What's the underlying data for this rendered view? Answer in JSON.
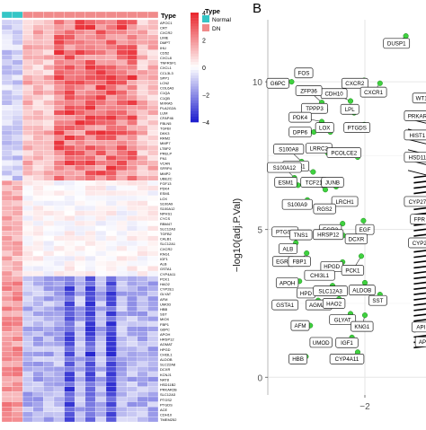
{
  "panel_b_letter": "B",
  "colors": {
    "heat_high": "#e8232b",
    "heat_mid": "#ffffff",
    "heat_low": "#1a1acd",
    "type_normal": "#35c6c6",
    "type_dn": "#f08a8a",
    "point": "#3fd13f",
    "point_edge": "#1f8c1f"
  },
  "chart_data": [
    {
      "type": "heatmap",
      "annotation_label": "Type",
      "colorbar": {
        "ticks": [
          4,
          2,
          0,
          -2,
          -4
        ],
        "range": [
          -4,
          4
        ]
      },
      "legend": {
        "title": "Type",
        "entries": [
          "Normal",
          "DN"
        ]
      },
      "columns_normal": 2,
      "columns_dn": 13,
      "row_label_groups": [
        {
          "name": "up_block_1",
          "labels": [
            "APOC1",
            "CRT",
            "CXCR2",
            "LIME",
            "DMPT",
            "IHU",
            "CD52",
            "CXCL8",
            "TNFRSF1",
            "CXCL1",
            "CCL3L3",
            "SPP1"
          ]
        },
        {
          "name": "up_block_2",
          "labels": [
            "LCN2",
            "COL6A3",
            "C1QA",
            "C1QB",
            "MXRA5",
            "PLA2G2A",
            "LUM",
            "CFAP46",
            "FBLN5",
            "TGFBI",
            "DKK3",
            "RRM2",
            "MMP7",
            "LTBP2",
            "PRELP",
            "FN1",
            "VCAN",
            "SFRP4",
            "MMP2",
            "UBEZC"
          ]
        },
        {
          "name": "mid_block",
          "labels": [
            "FGF13",
            "PDK4",
            "ESM1",
            "LOX",
            "S100A9",
            "S100A12",
            "NPHS1",
            "CYCS",
            "RBM47",
            "SLC12A3",
            "TGFB2",
            "CALB1",
            "SLC12A1",
            "CXCR2",
            "KNG1",
            "IGF1",
            "ALB",
            "GSTA1",
            "CYP4A11"
          ]
        },
        {
          "name": "down_block",
          "labels": [
            "PCK1",
            "HAO2",
            "CYP2E1",
            "GLYAT",
            "AFM",
            "UMOD",
            "HBB",
            "SST",
            "MIOX",
            "FBP1",
            "G6PC",
            "APOH",
            "HRSP12",
            "AGMAT",
            "HPGD",
            "CHI3L1",
            "ALDOB",
            "SLC22A8",
            "DCXR",
            "KCNJ1",
            "NAT8",
            "HSD11B2",
            "PRKAR2B",
            "SLC12A3",
            "PTGS2",
            "PTGDS",
            "ACE",
            "CDH10",
            "TMEM252"
          ]
        }
      ]
    },
    {
      "type": "scatter",
      "ylabel": "−log10(adj.P.Val)",
      "yticks": [
        0,
        5,
        10
      ],
      "xticks": [
        -2
      ],
      "xlim": [
        -3.35,
        -1.15
      ],
      "ylim": [
        -0.6,
        12.1
      ],
      "grid": true,
      "genes": [
        {
          "name": "DUSP1",
          "x": -1.43,
          "y": 11.55,
          "lx": -1.56,
          "ly": 11.3
        },
        {
          "name": "G6PC",
          "x": -3.02,
          "y": 10.0,
          "lx": -3.21,
          "ly": 9.95
        },
        {
          "name": "FOS",
          "x": -2.94,
          "y": 10.3,
          "lx": -2.85,
          "ly": 10.3
        },
        {
          "name": "CDH10",
          "x": -2.2,
          "y": 9.35,
          "lx": -2.43,
          "ly": 9.6
        },
        {
          "name": "CXCR2",
          "x": -2.01,
          "y": 10.05,
          "lx": -2.14,
          "ly": 9.95
        },
        {
          "name": "CXCR1",
          "x": -1.79,
          "y": 9.95,
          "lx": -1.88,
          "ly": 9.65
        },
        {
          "name": "ZFP36",
          "x": -2.6,
          "y": 9.3,
          "lx": -2.78,
          "ly": 9.7
        },
        {
          "name": "TPPP3",
          "x": -2.55,
          "y": 9.05,
          "lx": -2.7,
          "ly": 9.1
        },
        {
          "name": "LPL",
          "x": -2.15,
          "y": 8.95,
          "lx": -2.21,
          "ly": 9.07
        },
        {
          "name": "PTGDS",
          "x": -2.01,
          "y": 8.55,
          "lx": -2.11,
          "ly": 8.45
        },
        {
          "name": "PDK4",
          "x": -2.6,
          "y": 8.65,
          "lx": -2.9,
          "ly": 8.8
        },
        {
          "name": "LOX",
          "x": -2.48,
          "y": 8.3,
          "lx": -2.56,
          "ly": 8.45
        },
        {
          "name": "DPP6",
          "x": -2.71,
          "y": 8.3,
          "lx": -2.9,
          "ly": 8.3
        },
        {
          "name": "LRRC2",
          "x": -2.52,
          "y": 7.6,
          "lx": -2.64,
          "ly": 7.75
        },
        {
          "name": "PCOLCE2",
          "x": -2.1,
          "y": 7.45,
          "lx": -2.29,
          "ly": 7.6
        },
        {
          "name": "S100A8",
          "x": -2.88,
          "y": 7.3,
          "lx": -3.06,
          "ly": 7.72
        },
        {
          "name": "NPHS1",
          "x": -2.72,
          "y": 6.95,
          "lx": -2.96,
          "ly": 7.15
        },
        {
          "name": "S100A12",
          "x": -2.98,
          "y": 6.75,
          "lx": -3.12,
          "ly": 7.1
        },
        {
          "name": "ESM1",
          "x": -2.93,
          "y": 6.5,
          "lx": -3.1,
          "ly": 6.6
        },
        {
          "name": "TCF21",
          "x": -2.55,
          "y": 6.35,
          "lx": -2.71,
          "ly": 6.6
        },
        {
          "name": "JUNB",
          "x": -2.4,
          "y": 6.45,
          "lx": -2.45,
          "ly": 6.6
        },
        {
          "name": "S100A9",
          "x": -2.8,
          "y": 6.0,
          "lx": -2.94,
          "ly": 5.85
        },
        {
          "name": "LRCH1",
          "x": -2.15,
          "y": 6.0,
          "lx": -2.28,
          "ly": 5.95
        },
        {
          "name": "RGS2",
          "x": -2.45,
          "y": 5.7,
          "lx": -2.56,
          "ly": 5.7
        },
        {
          "name": "EGR3",
          "x": -2.31,
          "y": 5.2,
          "lx": -2.48,
          "ly": 5.0
        },
        {
          "name": "EGF",
          "x": -2.02,
          "y": 5.3,
          "lx": -2.0,
          "ly": 5.0
        },
        {
          "name": "PTGS2",
          "x": -2.94,
          "y": 4.9,
          "lx": -3.11,
          "ly": 4.92
        },
        {
          "name": "TNS1",
          "x": -2.78,
          "y": 4.9,
          "lx": -2.89,
          "ly": 4.82
        },
        {
          "name": "HRSP12",
          "x": -2.3,
          "y": 4.8,
          "lx": -2.51,
          "ly": 4.83
        },
        {
          "name": "DCXR",
          "x": -2.1,
          "y": 4.7,
          "lx": -2.12,
          "ly": 4.68
        },
        {
          "name": "ALB",
          "x": -2.96,
          "y": 4.55,
          "lx": -3.07,
          "ly": 4.35
        },
        {
          "name": "EGR1",
          "x": -3.0,
          "y": 4.0,
          "lx": -3.13,
          "ly": 3.92
        },
        {
          "name": "FBP1",
          "x": -2.81,
          "y": 4.2,
          "lx": -2.91,
          "ly": 3.92
        },
        {
          "name": "HPGD",
          "x": -2.31,
          "y": 3.9,
          "lx": -2.46,
          "ly": 3.75
        },
        {
          "name": "PCK1",
          "x": -2.05,
          "y": 4.1,
          "lx": -2.17,
          "ly": 3.62
        },
        {
          "name": "APOH",
          "x": -2.91,
          "y": 3.25,
          "lx": -3.08,
          "ly": 3.2
        },
        {
          "name": "CHI3L1",
          "x": -2.59,
          "y": 3.5,
          "lx": -2.63,
          "ly": 3.45
        },
        {
          "name": "HPD",
          "x": -2.7,
          "y": 2.95,
          "lx": -2.82,
          "ly": 2.85
        },
        {
          "name": "SLC12A3",
          "x": -2.45,
          "y": 3.1,
          "lx": -2.48,
          "ly": 2.92
        },
        {
          "name": "ALDOB",
          "x": -2.0,
          "y": 3.2,
          "lx": -2.04,
          "ly": 2.95
        },
        {
          "name": "GSTA1",
          "x": -3.05,
          "y": 2.45,
          "lx": -3.11,
          "ly": 2.45
        },
        {
          "name": "AGMAT",
          "x": -2.65,
          "y": 2.6,
          "lx": -2.64,
          "ly": 2.45
        },
        {
          "name": "HAO2",
          "x": -2.36,
          "y": 2.65,
          "lx": -2.43,
          "ly": 2.5
        },
        {
          "name": "SST",
          "x": -1.79,
          "y": 2.8,
          "lx": -1.82,
          "ly": 2.6
        },
        {
          "name": "GLYAT",
          "x": -2.2,
          "y": 2.15,
          "lx": -2.31,
          "ly": 1.95
        },
        {
          "name": "KNG1",
          "x": -2.0,
          "y": 2.1,
          "lx": -2.04,
          "ly": 1.72
        },
        {
          "name": "AFM",
          "x": -2.76,
          "y": 1.75,
          "lx": -2.9,
          "ly": 1.75
        },
        {
          "name": "UMOD",
          "x": -2.5,
          "y": 1.25,
          "lx": -2.61,
          "ly": 1.18
        },
        {
          "name": "IGF1",
          "x": -2.18,
          "y": 1.35,
          "lx": -2.25,
          "ly": 1.17
        },
        {
          "name": "HBB",
          "x": -2.82,
          "y": 0.7,
          "lx": -2.93,
          "ly": 0.62
        },
        {
          "name": "CYP4A11",
          "x": -2.1,
          "y": 0.85,
          "lx": -2.25,
          "ly": 0.62
        }
      ],
      "clipped_labels": [
        {
          "name": "WT1",
          "lx": -1.21,
          "ly": 9.45
        },
        {
          "name": "PRKAR",
          "lx": -1.27,
          "ly": 8.85
        },
        {
          "name": "HIST1",
          "lx": -1.27,
          "ly": 8.2
        },
        {
          "name": "HSD11",
          "lx": -1.27,
          "ly": 7.45
        },
        {
          "name": "CYP27",
          "lx": -1.27,
          "ly": 5.95
        },
        {
          "name": "FPR",
          "lx": -1.24,
          "ly": 5.35
        },
        {
          "name": "CYP2",
          "lx": -1.24,
          "ly": 4.55
        },
        {
          "name": "API",
          "lx": -1.22,
          "ly": 1.7
        },
        {
          "name": "AP",
          "lx": -1.2,
          "ly": 1.2
        }
      ]
    }
  ]
}
